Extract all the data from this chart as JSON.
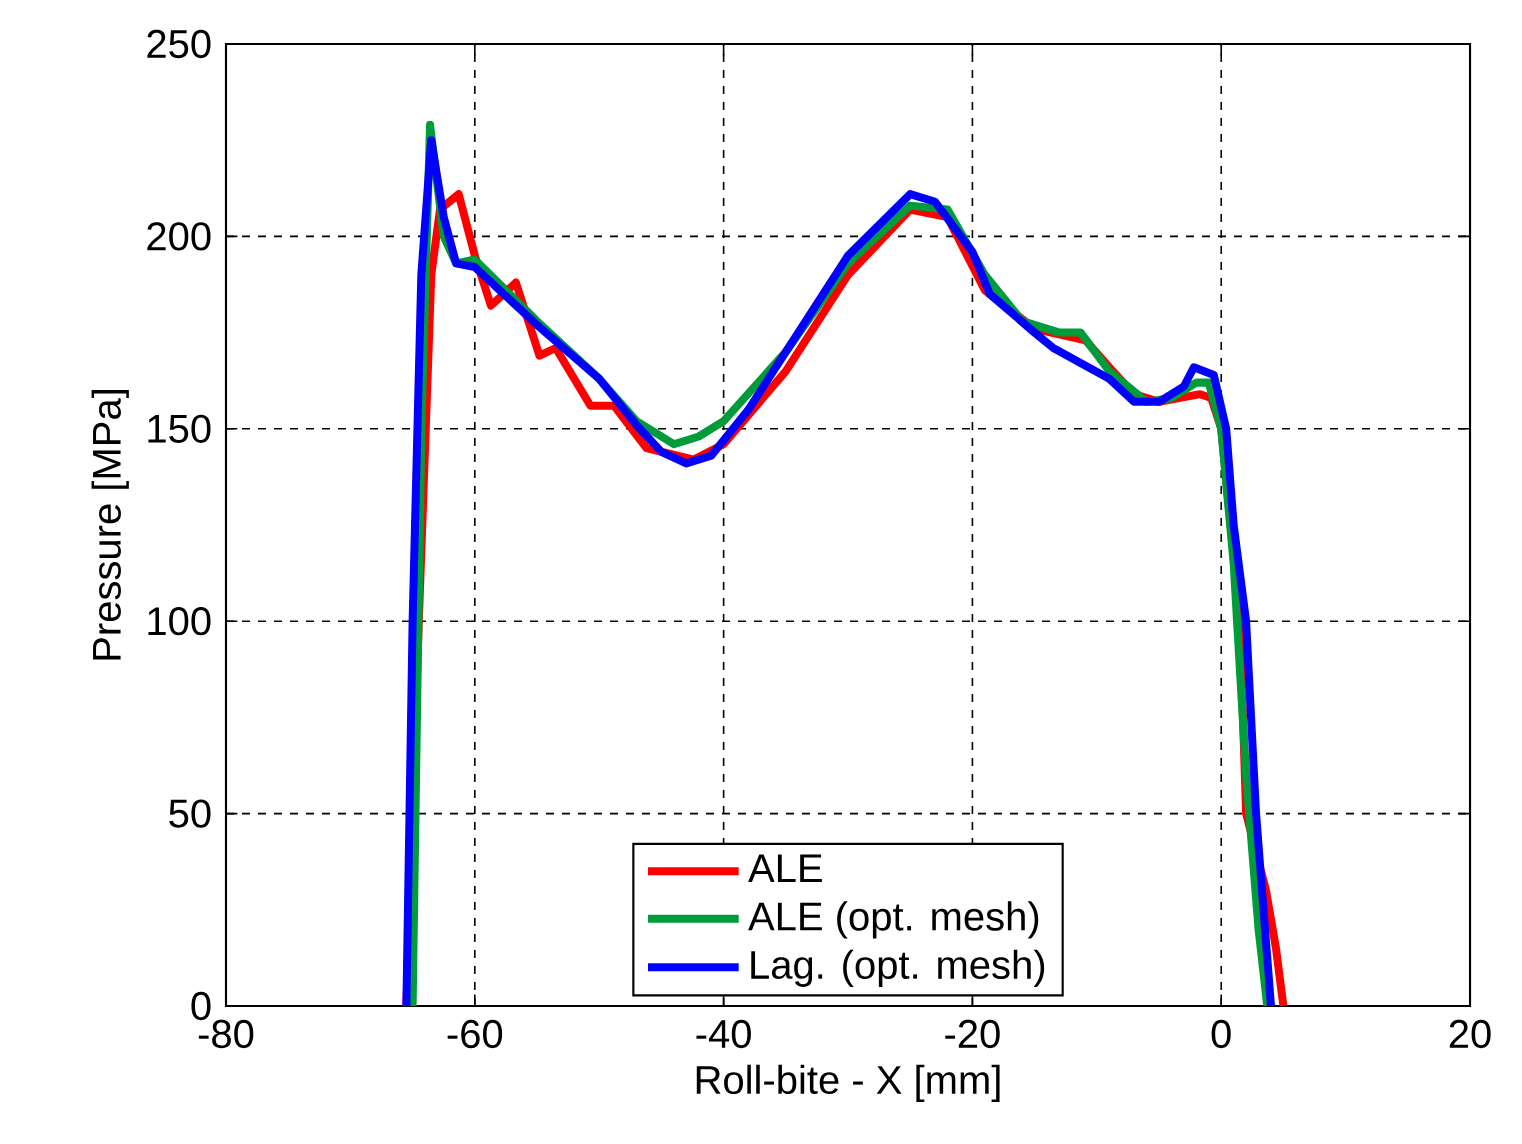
{
  "chart_data": {
    "type": "line",
    "xlabel": "Roll-bite - X [mm]",
    "ylabel": "Pressure [MPa]",
    "xlim": [
      -80,
      20
    ],
    "ylim": [
      0,
      250
    ],
    "xticks": [
      -80,
      -60,
      -40,
      -20,
      0,
      20
    ],
    "yticks": [
      0,
      50,
      100,
      150,
      200,
      250
    ],
    "grid": true,
    "legend": "bottom",
    "line_style": "solid",
    "series": [
      {
        "name": "ALE",
        "color": "#ff0000",
        "x": [
          -65.5,
          -64.5,
          -63.5,
          -62.8,
          -61.3,
          -60,
          -58.7,
          -56.7,
          -54.8,
          -53.5,
          -50.7,
          -48.8,
          -46.2,
          -42.4,
          -40,
          -35,
          -30,
          -25,
          -22,
          -19,
          -15,
          -10.9,
          -9,
          -7,
          -5,
          -1.7,
          -0.8,
          0,
          1.5,
          2,
          3.6,
          4.4,
          5
        ],
        "values": [
          0,
          100,
          190,
          207,
          211,
          195,
          182,
          188,
          169,
          171,
          156,
          156,
          145,
          142,
          146,
          165,
          190,
          207,
          205,
          186,
          176,
          173,
          166,
          159,
          157,
          159,
          158,
          150,
          100,
          50,
          30,
          15,
          0
        ]
      },
      {
        "name": "ALE (opt. mesh)",
        "color": "#009c3b",
        "x": [
          -65,
          -64.3,
          -63.6,
          -62.5,
          -61.5,
          -60,
          -55,
          -50,
          -47,
          -44,
          -42,
          -40,
          -35,
          -30,
          -25,
          -22,
          -19,
          -16,
          -13,
          -11.3,
          -9,
          -6,
          -4,
          -2,
          -1,
          0,
          1,
          2,
          3,
          3.7
        ],
        "values": [
          0,
          150,
          229,
          200,
          193,
          194,
          178,
          163,
          152,
          146,
          148,
          152,
          170,
          193,
          208,
          207,
          190,
          178,
          175,
          175,
          165,
          157,
          158,
          162,
          162,
          150,
          115,
          60,
          20,
          0
        ]
      },
      {
        "name": "Lag. (opt. mesh)",
        "color": "#0000ff",
        "x": [
          -65.5,
          -65,
          -64.3,
          -63.5,
          -62.5,
          -61.5,
          -60,
          -55,
          -50,
          -47,
          -45,
          -43,
          -41,
          -38,
          -35,
          -30,
          -25,
          -23,
          -20,
          -18.6,
          -15,
          -13.5,
          -9,
          -7,
          -5,
          -3,
          -2.2,
          -0.6,
          0.4,
          1,
          2,
          2.8,
          4
        ],
        "values": [
          0,
          100,
          190,
          225,
          205,
          193,
          192,
          177,
          163,
          151,
          144,
          141,
          143,
          155,
          170,
          195,
          211,
          209,
          196,
          185,
          175,
          171,
          163,
          157,
          157,
          161,
          166,
          164,
          150,
          125,
          100,
          50,
          0
        ]
      }
    ]
  }
}
